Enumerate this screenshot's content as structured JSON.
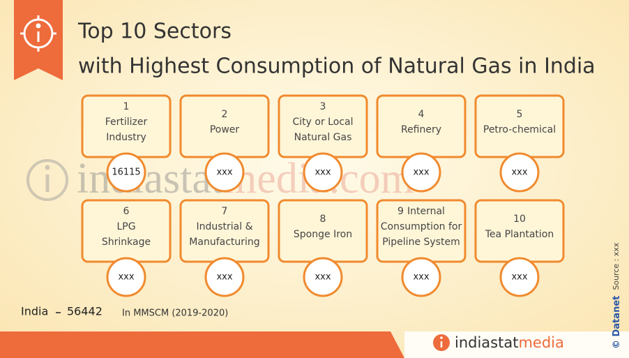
{
  "header": {
    "title_line1": "Top 10 Sectors",
    "title_line2": "with Highest Consumption of Natural Gas in India"
  },
  "sectors": [
    {
      "rank": "1",
      "label_lines": [
        "Fertilizer",
        "Industry"
      ],
      "value": 16115
    },
    {
      "rank": "2",
      "label_lines": [
        "Power"
      ],
      "value": "xxx"
    },
    {
      "rank": "3",
      "label_lines": [
        "City or Local",
        "Natural Gas"
      ],
      "value": "xxx"
    },
    {
      "rank": "4",
      "label_lines": [
        "Refinery"
      ],
      "value": "xxx"
    },
    {
      "rank": "5",
      "label_lines": [
        "Petro-chemical"
      ],
      "value": "xxx"
    },
    {
      "rank": "6",
      "label_lines": [
        "LPG",
        "Shrinkage"
      ],
      "value": "xxx"
    },
    {
      "rank": "7",
      "label_lines": [
        "Industrial &",
        "Manufacturing"
      ],
      "value": "xxx"
    },
    {
      "rank": "8",
      "label_lines": [
        "Sponge Iron"
      ],
      "value": "xxx"
    },
    {
      "rank": "9",
      "label_lines": [
        "Internal",
        "Consumption for",
        "Pipeline System"
      ],
      "value": "xxx"
    },
    {
      "rank": "10",
      "label_lines": [
        "Tea Plantation"
      ],
      "value": "xxx"
    }
  ],
  "total": {
    "label": "India",
    "value": 56442
  },
  "unit_note": "In MMSCM (2019-2020)",
  "watermark": {
    "part1": "indiastat",
    "part2": "media.com"
  },
  "logo": {
    "part1": "indiastat",
    "part2": "media"
  },
  "side": {
    "brand": "© Datanet",
    "source": "Source : xxx"
  }
}
